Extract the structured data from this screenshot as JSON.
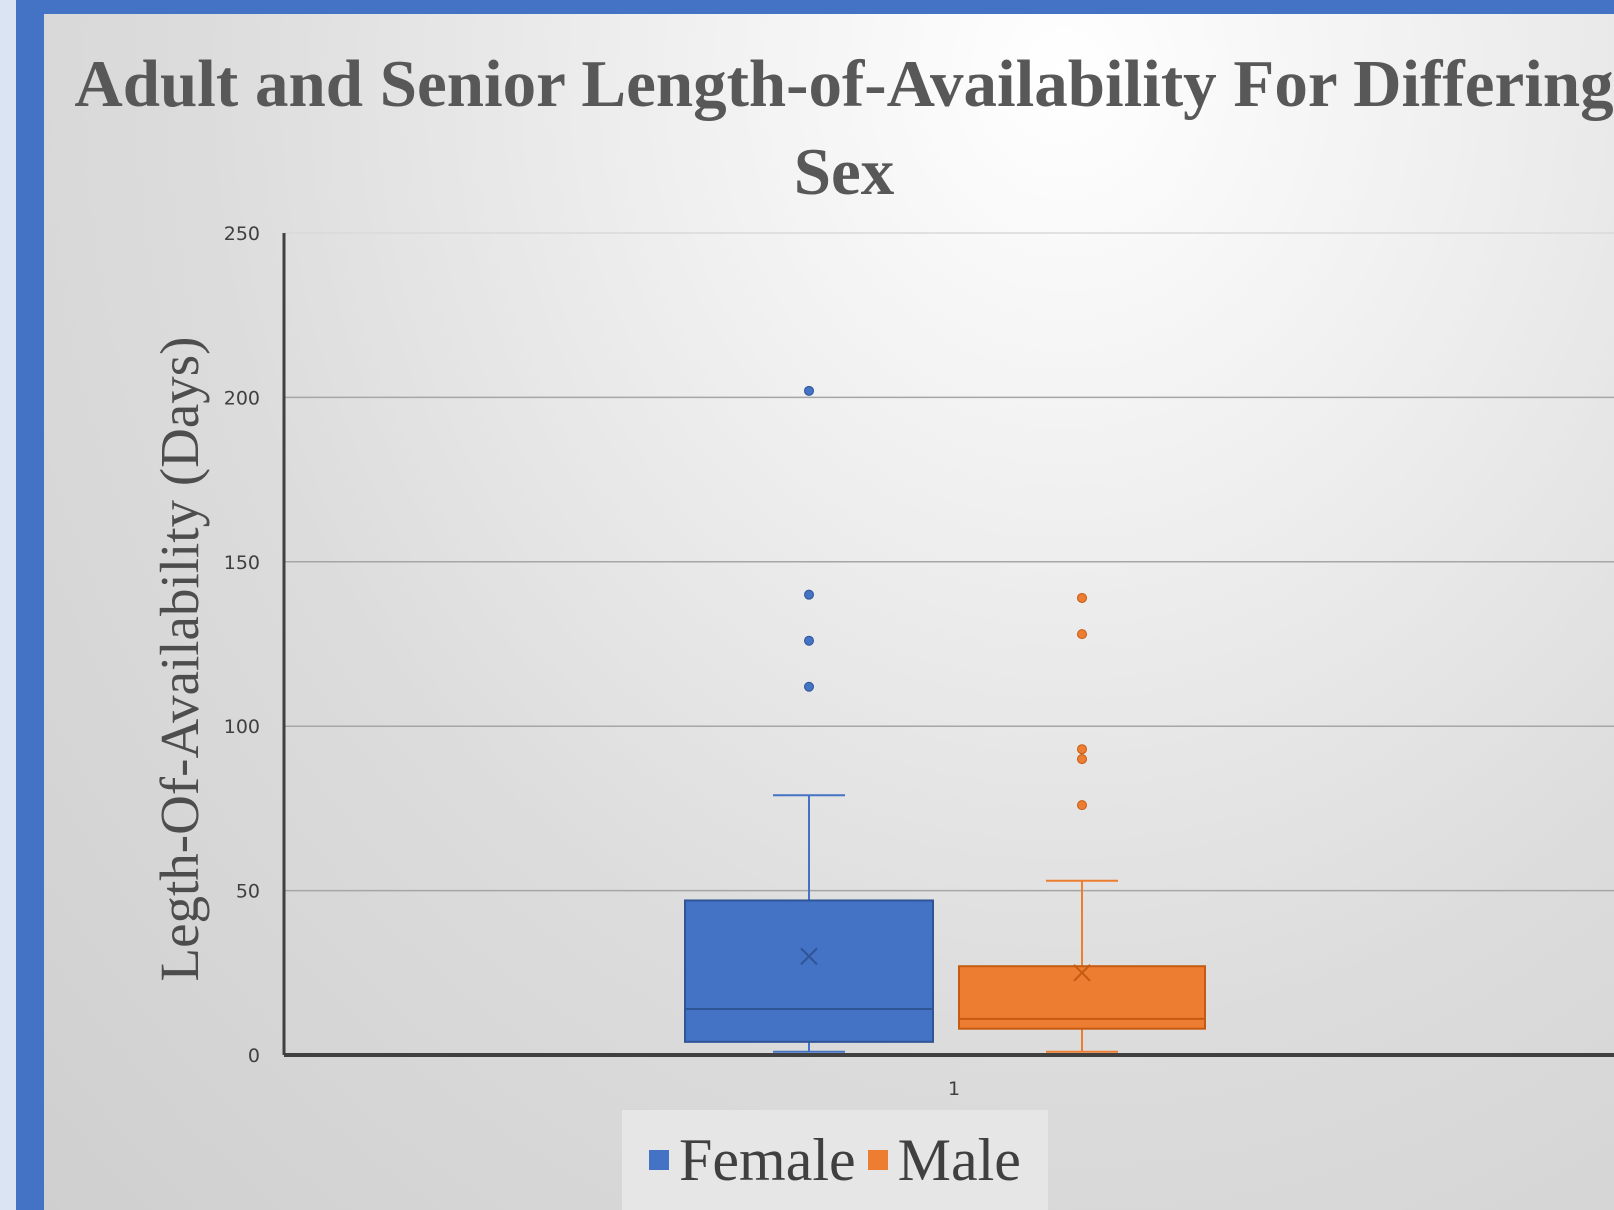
{
  "chart_data": {
    "type": "box",
    "title": "Adult and Senior Length-of-Availability For Differing Sex",
    "xlabel": "",
    "ylabel": "Legth-Of-Availability (Days)",
    "ylim": [
      0,
      250
    ],
    "yticks": [
      "0",
      "50",
      "100",
      "150",
      "200",
      "250"
    ],
    "categories": [
      "1"
    ],
    "grid": true,
    "legend_position": "bottom",
    "series": [
      {
        "name": "Female",
        "color": "#4472c4",
        "min": 1,
        "q1": 4,
        "median": 14,
        "mean": 30,
        "q3": 47,
        "max": 79,
        "outliers": [
          112,
          126,
          140,
          202
        ]
      },
      {
        "name": "Male",
        "color": "#ed7d31",
        "min": 1,
        "q1": 8,
        "median": 11,
        "mean": 25,
        "q3": 27,
        "max": 53,
        "outliers": [
          76,
          90,
          93,
          128,
          139
        ]
      }
    ]
  }
}
